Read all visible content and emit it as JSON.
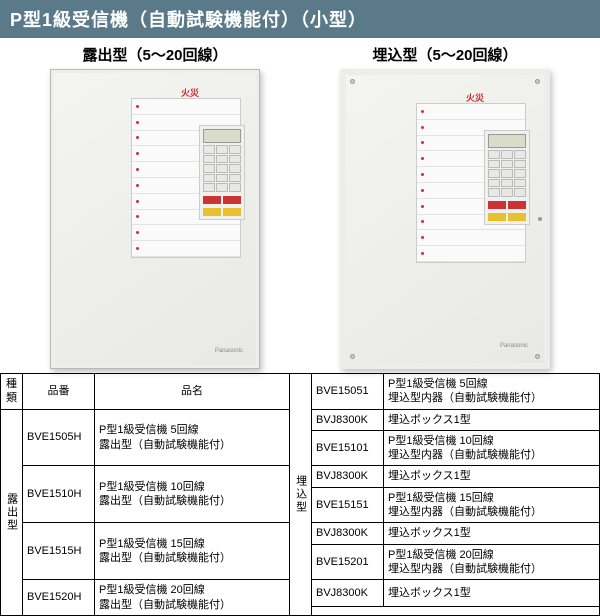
{
  "title": "P型1級受信機（自動試験機能付）（小型）",
  "captions": {
    "left": "露出型（5〜20回線）",
    "right": "埋込型（5〜20回線）"
  },
  "fire_label": "火災",
  "brand_small": "Panasonic",
  "table": {
    "headers": {
      "kind": "種類",
      "partno": "品番",
      "name": "品名"
    },
    "left_kind": "露出型",
    "right_kind": "埋込型",
    "left_rows": [
      {
        "pn": "BVE1505H",
        "name": "P型1級受信機 5回線\n露出型（自動試験機能付）"
      },
      {
        "pn": "BVE1510H",
        "name": "P型1級受信機 10回線\n露出型（自動試験機能付）"
      },
      {
        "pn": "BVE1515H",
        "name": "P型1級受信機 15回線\n露出型（自動試験機能付）"
      },
      {
        "pn": "BVE1520H",
        "name": "P型1級受信機 20回線\n露出型（自動試験機能付）"
      }
    ],
    "right_rows": [
      {
        "pn": "BVE15051",
        "name": "P型1級受信機 5回線\n埋込型内器（自動試験機能付）"
      },
      {
        "pn": "BVJ8300K",
        "name": "埋込ボックス1型"
      },
      {
        "pn": "BVE15101",
        "name": "P型1級受信機 10回線\n埋込型内器（自動試験機能付）"
      },
      {
        "pn": "BVJ8300K",
        "name": "埋込ボックス1型"
      },
      {
        "pn": "BVE15151",
        "name": "P型1級受信機 15回線\n埋込型内器（自動試験機能付）"
      },
      {
        "pn": "BVJ8300K",
        "name": "埋込ボックス1型"
      },
      {
        "pn": "BVE15201",
        "name": "P型1級受信機 20回線\n埋込型内器（自動試験機能付）"
      },
      {
        "pn": "BVJ8300K",
        "name": "埋込ボックス1型"
      }
    ]
  },
  "colors": {
    "title_bg": "#5a7a8a",
    "title_fg": "#ffffff",
    "border": "#000000"
  }
}
